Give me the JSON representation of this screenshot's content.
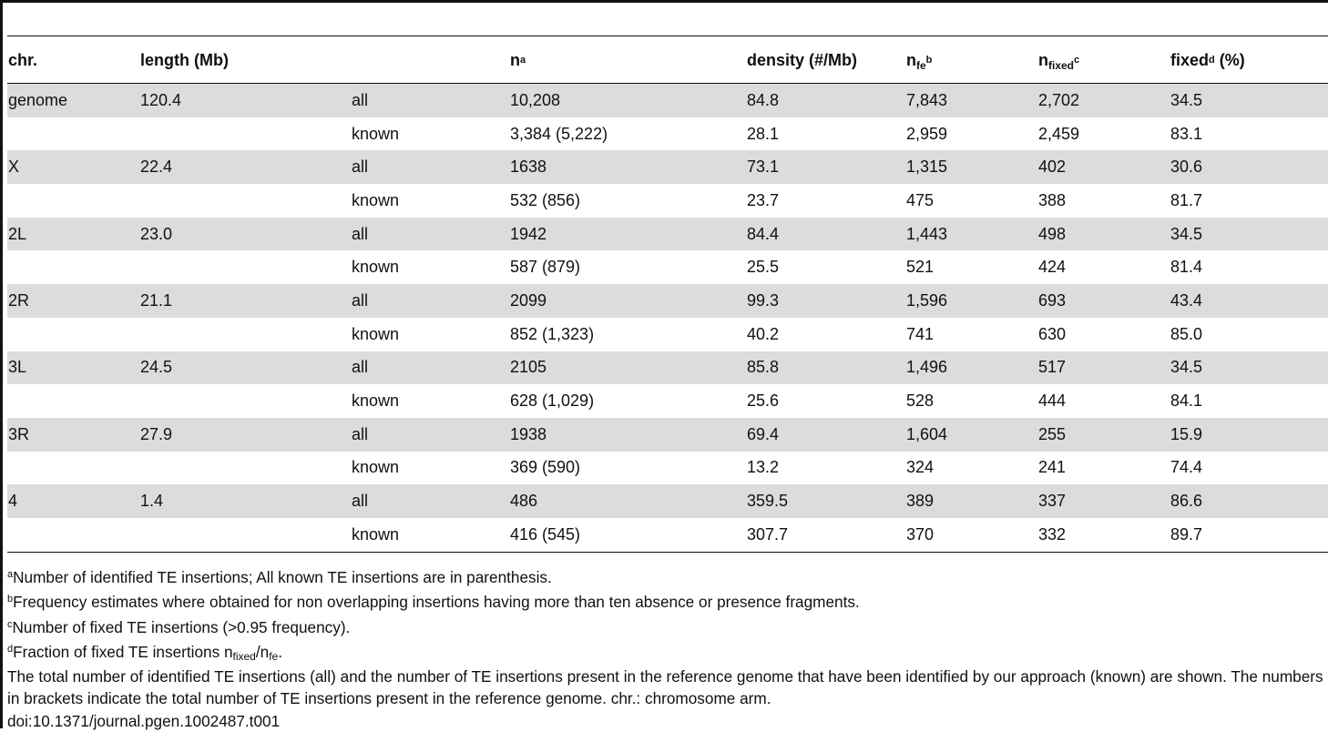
{
  "table": {
    "headers": {
      "chr": "chr.",
      "length": "length (Mb)",
      "n_base": "n",
      "n_sup": "a",
      "density": "density (#/Mb)",
      "nfe_base": "n",
      "nfe_sub": "fe",
      "nfe_sup": "b",
      "nfixed_base": "n",
      "nfixed_sub": "fixed",
      "nfixed_sup": "c",
      "fixed_base": "fixed",
      "fixed_sup": "d",
      "fixed_tail": " (%)"
    },
    "rows": [
      {
        "chr": "genome",
        "length": "120.4",
        "type": "all",
        "n": "10,208",
        "density": "84.8",
        "nfe": "7,843",
        "nfixed": "2,702",
        "fixed": "34.5"
      },
      {
        "chr": "",
        "length": "",
        "type": "known",
        "n": "3,384 (5,222)",
        "density": "28.1",
        "nfe": "2,959",
        "nfixed": "2,459",
        "fixed": "83.1"
      },
      {
        "chr": "X",
        "length": "22.4",
        "type": "all",
        "n": "1638",
        "density": "73.1",
        "nfe": "1,315",
        "nfixed": "402",
        "fixed": "30.6"
      },
      {
        "chr": "",
        "length": "",
        "type": "known",
        "n": "532 (856)",
        "density": "23.7",
        "nfe": "475",
        "nfixed": "388",
        "fixed": "81.7"
      },
      {
        "chr": "2L",
        "length": "23.0",
        "type": "all",
        "n": "1942",
        "density": "84.4",
        "nfe": "1,443",
        "nfixed": "498",
        "fixed": "34.5"
      },
      {
        "chr": "",
        "length": "",
        "type": "known",
        "n": "587 (879)",
        "density": "25.5",
        "nfe": "521",
        "nfixed": "424",
        "fixed": "81.4"
      },
      {
        "chr": "2R",
        "length": "21.1",
        "type": "all",
        "n": "2099",
        "density": "99.3",
        "nfe": "1,596",
        "nfixed": "693",
        "fixed": "43.4"
      },
      {
        "chr": "",
        "length": "",
        "type": "known",
        "n": "852 (1,323)",
        "density": "40.2",
        "nfe": "741",
        "nfixed": "630",
        "fixed": "85.0"
      },
      {
        "chr": "3L",
        "length": "24.5",
        "type": "all",
        "n": "2105",
        "density": "85.8",
        "nfe": "1,496",
        "nfixed": "517",
        "fixed": "34.5"
      },
      {
        "chr": "",
        "length": "",
        "type": "known",
        "n": "628 (1,029)",
        "density": "25.6",
        "nfe": "528",
        "nfixed": "444",
        "fixed": "84.1"
      },
      {
        "chr": "3R",
        "length": "27.9",
        "type": "all",
        "n": "1938",
        "density": "69.4",
        "nfe": "1,604",
        "nfixed": "255",
        "fixed": "15.9"
      },
      {
        "chr": "",
        "length": "",
        "type": "known",
        "n": "369 (590)",
        "density": "13.2",
        "nfe": "324",
        "nfixed": "241",
        "fixed": "74.4"
      },
      {
        "chr": "4",
        "length": "1.4",
        "type": "all",
        "n": "486",
        "density": "359.5",
        "nfe": "389",
        "nfixed": "337",
        "fixed": "86.6"
      },
      {
        "chr": "",
        "length": "",
        "type": "known",
        "n": "416 (545)",
        "density": "307.7",
        "nfe": "370",
        "nfixed": "332",
        "fixed": "89.7"
      }
    ]
  },
  "footnotes": {
    "a_mark": "a",
    "a_text": "Number of identified TE insertions; All known TE insertions are in parenthesis.",
    "b_mark": "b",
    "b_text": "Frequency estimates where obtained for non overlapping insertions having more than ten absence or presence fragments.",
    "c_mark": "c",
    "c_text": "Number of fixed TE insertions (>0.95 frequency).",
    "d_mark": "d",
    "d_text_pre": "Fraction of fixed TE insertions n",
    "d_sub1": "fixed",
    "d_mid": "/n",
    "d_sub2": "fe",
    "d_end": ".",
    "description": "The total number of identified TE insertions (all) and the number of TE insertions present in the reference genome that have been identified by our approach (known) are shown. The numbers in brackets indicate the total number of TE insertions present in the reference genome. chr.: chromosome arm.",
    "doi": "doi:10.1371/journal.pgen.1002487.t001"
  }
}
